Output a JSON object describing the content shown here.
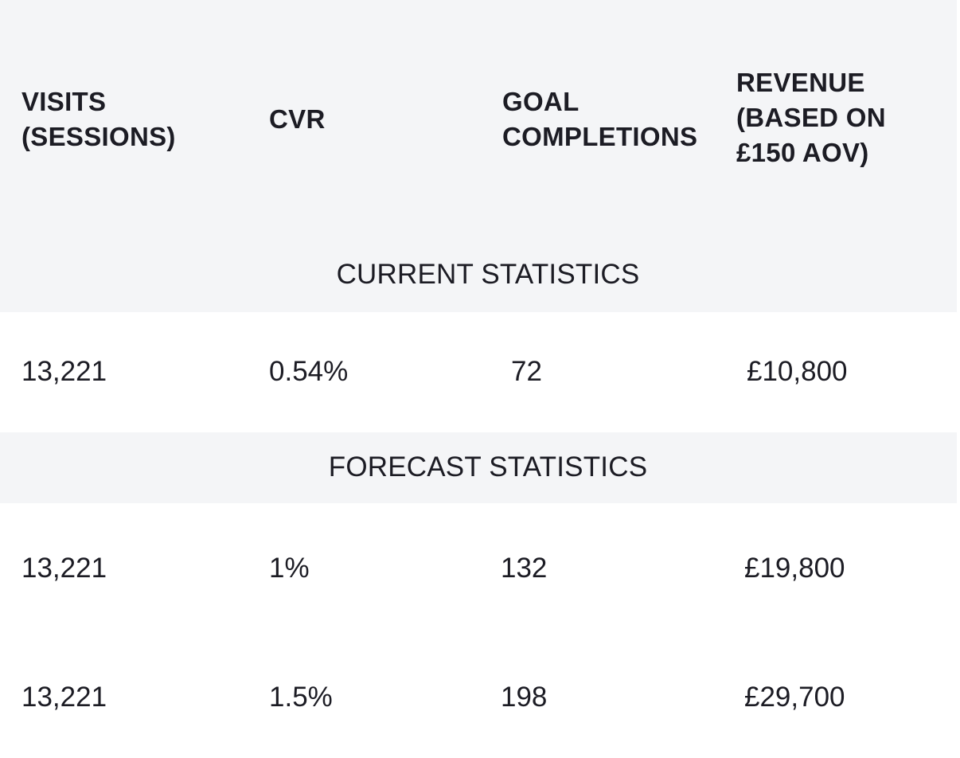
{
  "table": {
    "headers": [
      "VISITS\n(SESSIONS)",
      "CVR",
      "GOAL\nCOMPLETIONS",
      "REVENUE\n(BASED ON\n£150 AOV)"
    ],
    "current_label": "CURRENT STATISTICS",
    "current_rows": [
      [
        "13,221",
        "0.54%",
        "72",
        "£10,800"
      ]
    ],
    "forecast_label": "FORECAST STATISTICS",
    "forecast_rows": [
      [
        "13,221",
        "1%",
        "132",
        "£19,800"
      ],
      [
        "13,221",
        "1.5%",
        "198",
        "£29,700"
      ]
    ]
  },
  "colors": {
    "band_background": "#f4f5f7",
    "text": "#1c1c24"
  }
}
